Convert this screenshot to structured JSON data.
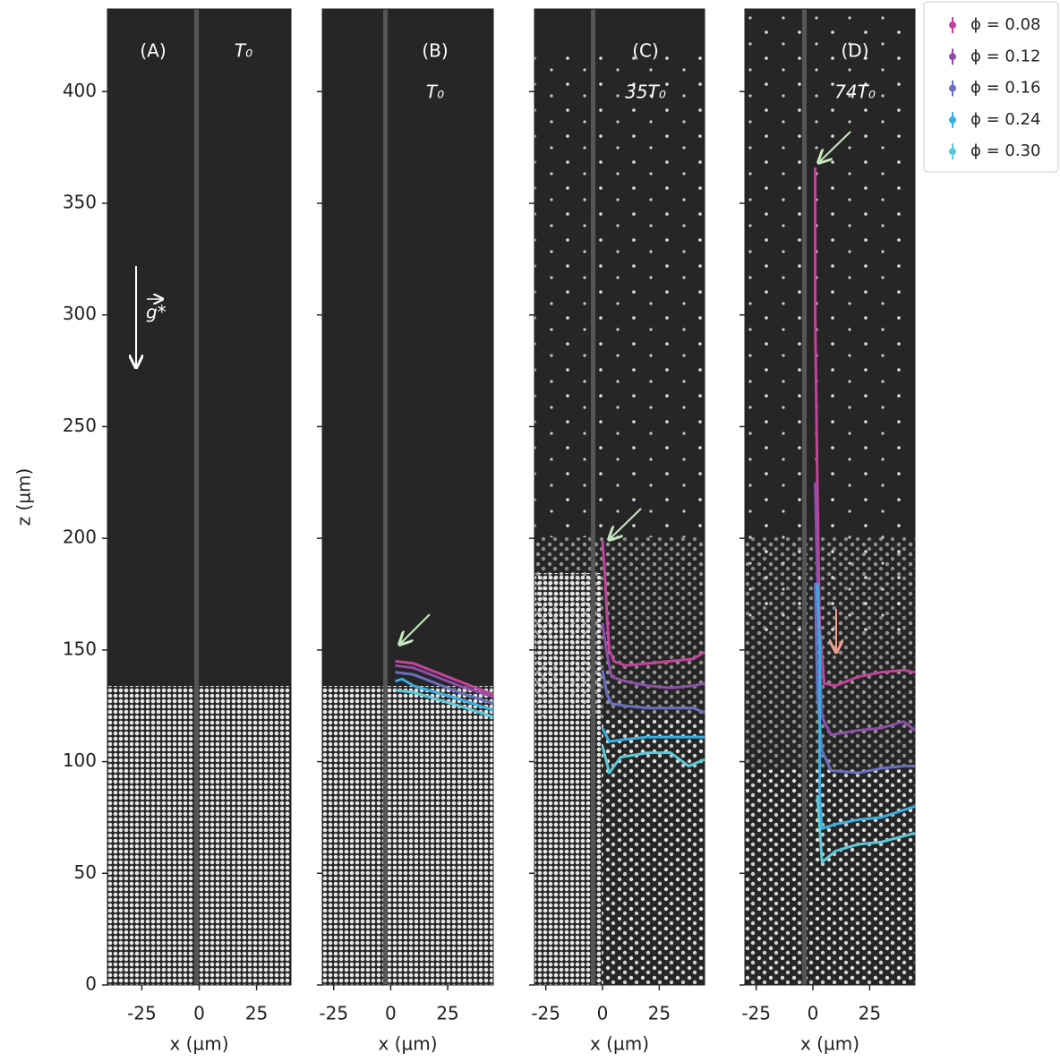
{
  "chart_data": [
    {
      "type": "line",
      "title": "(A)",
      "annotation": "T₀",
      "gravity_label": "g*",
      "xlabel": "x (µm)",
      "ylabel": "z (µm)",
      "xlim": [
        -40,
        40
      ],
      "xticks": [
        -25,
        0,
        25
      ],
      "ylim": [
        0,
        437
      ],
      "yticks": [
        0,
        50,
        100,
        150,
        200,
        250,
        300,
        350,
        400
      ],
      "series": []
    },
    {
      "type": "line",
      "title": "(B)",
      "annotation": "T₀",
      "xlabel": "x (µm)",
      "xlim": [
        -30,
        45
      ],
      "xticks": [
        -25,
        0,
        25
      ],
      "ylim": [
        0,
        437
      ],
      "yticks": [
        0,
        50,
        100,
        150,
        200,
        250,
        300,
        350,
        400
      ],
      "series": [
        {
          "color": "#c2449a",
          "x": [
            2,
            10,
            20,
            30,
            45
          ],
          "values": [
            145,
            144,
            140,
            136,
            130
          ]
        },
        {
          "color": "#8e4fa8",
          "x": [
            2,
            10,
            20,
            30,
            45
          ],
          "values": [
            143,
            142,
            138,
            134,
            129
          ]
        },
        {
          "color": "#6a6fc0",
          "x": [
            2,
            10,
            20,
            30,
            45
          ],
          "values": [
            140,
            139,
            135,
            131,
            126
          ]
        },
        {
          "color": "#3aaee0",
          "x": [
            2,
            5,
            10,
            20,
            30,
            45
          ],
          "values": [
            136,
            137,
            134,
            131,
            128,
            123
          ]
        },
        {
          "color": "#5bc8d6",
          "x": [
            2,
            10,
            20,
            30,
            45
          ],
          "values": [
            132,
            131,
            128,
            125,
            120
          ]
        }
      ]
    },
    {
      "type": "line",
      "title": "(C)",
      "annotation": "35T₀",
      "xlabel": "x (µm)",
      "xlim": [
        -30,
        45
      ],
      "xticks": [
        -25,
        0,
        25
      ],
      "ylim": [
        0,
        437
      ],
      "yticks": [
        0,
        50,
        100,
        150,
        200,
        250,
        300,
        350,
        400
      ],
      "series": [
        {
          "color": "#c2449a",
          "x": [
            0,
            1,
            2,
            3,
            5,
            10,
            20,
            30,
            40,
            45
          ],
          "values": [
            199,
            185,
            165,
            150,
            145,
            143,
            144,
            145,
            146,
            149
          ]
        },
        {
          "color": "#8e4fa8",
          "x": [
            0,
            2,
            4,
            10,
            20,
            30,
            40,
            45
          ],
          "values": [
            162,
            148,
            138,
            136,
            134,
            133,
            134,
            135
          ]
        },
        {
          "color": "#6a6fc0",
          "x": [
            0,
            2,
            4,
            10,
            20,
            30,
            40,
            45
          ],
          "values": [
            141,
            130,
            126,
            125,
            124,
            124,
            124,
            122
          ]
        },
        {
          "color": "#3aaee0",
          "x": [
            0,
            3,
            10,
            20,
            30,
            45
          ],
          "values": [
            115,
            109,
            110,
            111,
            111,
            111
          ]
        },
        {
          "color": "#5bc8d6",
          "x": [
            0,
            3,
            8,
            20,
            30,
            38,
            45
          ],
          "values": [
            107,
            95,
            102,
            104,
            104,
            98,
            101
          ]
        }
      ]
    },
    {
      "type": "line",
      "title": "(D)",
      "annotation": "74T₀",
      "xlabel": "x (µm)",
      "legend": "outside upper right",
      "xlim": [
        -30,
        45
      ],
      "xticks": [
        -25,
        0,
        25
      ],
      "ylim": [
        0,
        437
      ],
      "yticks": [
        0,
        50,
        100,
        150,
        200,
        250,
        300,
        350,
        400
      ],
      "series": [
        {
          "name": "ϕ = 0.08",
          "color": "#c2449a",
          "x": [
            1,
            1,
            2,
            3,
            5,
            10,
            20,
            30,
            40,
            45
          ],
          "values": [
            366,
            300,
            220,
            160,
            135,
            134,
            138,
            140,
            141,
            140
          ]
        },
        {
          "name": "ϕ = 0.12",
          "color": "#8e4fa8",
          "x": [
            1,
            2,
            4,
            8,
            20,
            30,
            40,
            45
          ],
          "values": [
            225,
            180,
            120,
            112,
            114,
            115,
            118,
            114
          ]
        },
        {
          "name": "ϕ = 0.16",
          "color": "#6a6fc0",
          "x": [
            1,
            2,
            4,
            8,
            20,
            30,
            40,
            45
          ],
          "values": [
            180,
            130,
            105,
            96,
            95,
            97,
            98,
            98
          ]
        },
        {
          "name": "ϕ = 0.24",
          "color": "#3aaee0",
          "x": [
            2,
            3,
            3,
            4,
            10,
            20,
            30,
            45
          ],
          "values": [
            180,
            150,
            85,
            70,
            72,
            74,
            75,
            80
          ]
        },
        {
          "name": "ϕ = 0.30",
          "color": "#5bc8d6",
          "x": [
            2,
            3,
            4,
            10,
            20,
            30,
            45
          ],
          "values": [
            85,
            70,
            55,
            60,
            63,
            64,
            68
          ]
        }
      ]
    }
  ]
}
